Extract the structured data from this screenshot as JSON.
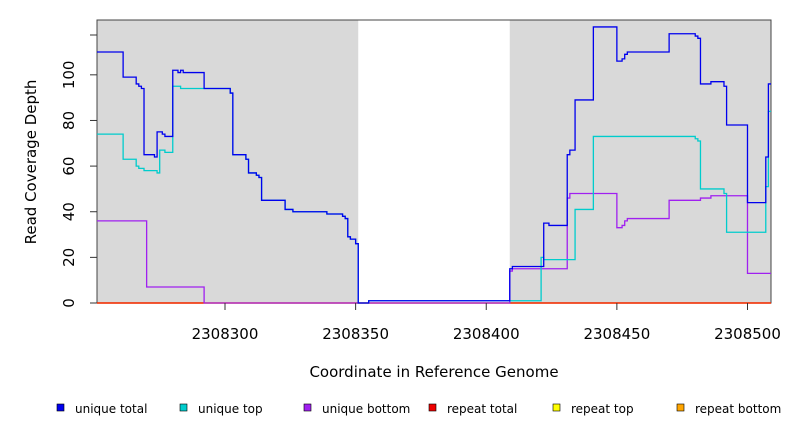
{
  "chart_data": {
    "type": "line",
    "xlabel": "Coordinate in Reference Genome",
    "ylabel": "Read Coverage Depth",
    "xlim": [
      2308251,
      2308509
    ],
    "ylim": [
      0,
      120
    ],
    "x_ticks": [
      2308300,
      2308350,
      2308400,
      2308450,
      2308500
    ],
    "y_ticks": [
      0,
      20,
      40,
      60,
      80,
      100
    ],
    "shaded_regions": [
      [
        2308251,
        2308351
      ],
      [
        2308409,
        2308509
      ]
    ],
    "legend_position": "bottom",
    "series": [
      {
        "name": "unique total",
        "color": "#0000ee",
        "points": [
          [
            2308251,
            110
          ],
          [
            2308261,
            110
          ],
          [
            2308261,
            99
          ],
          [
            2308266,
            99
          ],
          [
            2308266,
            96
          ],
          [
            2308267,
            96
          ],
          [
            2308267,
            95
          ],
          [
            2308268,
            95
          ],
          [
            2308268,
            94
          ],
          [
            2308269,
            94
          ],
          [
            2308269,
            65
          ],
          [
            2308273,
            65
          ],
          [
            2308273,
            64
          ],
          [
            2308274,
            64
          ],
          [
            2308274,
            75
          ],
          [
            2308276,
            75
          ],
          [
            2308276,
            74
          ],
          [
            2308277,
            74
          ],
          [
            2308277,
            73
          ],
          [
            2308280,
            73
          ],
          [
            2308280,
            102
          ],
          [
            2308282,
            102
          ],
          [
            2308282,
            101
          ],
          [
            2308283,
            101
          ],
          [
            2308283,
            102
          ],
          [
            2308284,
            102
          ],
          [
            2308284,
            101
          ],
          [
            2308292,
            101
          ],
          [
            2308292,
            94
          ],
          [
            2308302,
            94
          ],
          [
            2308302,
            92
          ],
          [
            2308303,
            92
          ],
          [
            2308303,
            65
          ],
          [
            2308308,
            65
          ],
          [
            2308308,
            63
          ],
          [
            2308309,
            63
          ],
          [
            2308309,
            57
          ],
          [
            2308312,
            57
          ],
          [
            2308312,
            56
          ],
          [
            2308313,
            56
          ],
          [
            2308313,
            55
          ],
          [
            2308314,
            55
          ],
          [
            2308314,
            45
          ],
          [
            2308323,
            45
          ],
          [
            2308323,
            41
          ],
          [
            2308326,
            41
          ],
          [
            2308326,
            40
          ],
          [
            2308339,
            40
          ],
          [
            2308339,
            39
          ],
          [
            2308345,
            39
          ],
          [
            2308345,
            38
          ],
          [
            2308346,
            38
          ],
          [
            2308346,
            37
          ],
          [
            2308347,
            37
          ],
          [
            2308347,
            29
          ],
          [
            2308348,
            29
          ],
          [
            2308348,
            28
          ],
          [
            2308350,
            28
          ],
          [
            2308350,
            26
          ],
          [
            2308351,
            26
          ],
          [
            2308351,
            0
          ],
          [
            2308355,
            0
          ],
          [
            2308355,
            1
          ],
          [
            2308409,
            1
          ],
          [
            2308409,
            15
          ],
          [
            2308410,
            15
          ],
          [
            2308410,
            16
          ],
          [
            2308422,
            16
          ],
          [
            2308422,
            35
          ],
          [
            2308424,
            35
          ],
          [
            2308424,
            34
          ],
          [
            2308431,
            34
          ],
          [
            2308431,
            65
          ],
          [
            2308432,
            65
          ],
          [
            2308432,
            67
          ],
          [
            2308434,
            67
          ],
          [
            2308434,
            89
          ],
          [
            2308441,
            89
          ],
          [
            2308441,
            121
          ],
          [
            2308450,
            121
          ],
          [
            2308450,
            106
          ],
          [
            2308452,
            106
          ],
          [
            2308452,
            107
          ],
          [
            2308453,
            107
          ],
          [
            2308453,
            109
          ],
          [
            2308454,
            109
          ],
          [
            2308454,
            110
          ],
          [
            2308470,
            110
          ],
          [
            2308470,
            118
          ],
          [
            2308480,
            118
          ],
          [
            2308480,
            117
          ],
          [
            2308481,
            117
          ],
          [
            2308481,
            116
          ],
          [
            2308482,
            116
          ],
          [
            2308482,
            96
          ],
          [
            2308486,
            96
          ],
          [
            2308486,
            97
          ],
          [
            2308491,
            97
          ],
          [
            2308491,
            95
          ],
          [
            2308492,
            95
          ],
          [
            2308492,
            78
          ],
          [
            2308500,
            78
          ],
          [
            2308500,
            44
          ],
          [
            2308507,
            44
          ],
          [
            2308507,
            64
          ],
          [
            2308508,
            64
          ],
          [
            2308508,
            96
          ],
          [
            2308509,
            96
          ]
        ]
      },
      {
        "name": "unique top",
        "color": "#00cccc",
        "points": [
          [
            2308251,
            74
          ],
          [
            2308261,
            74
          ],
          [
            2308261,
            63
          ],
          [
            2308266,
            63
          ],
          [
            2308266,
            60
          ],
          [
            2308267,
            60
          ],
          [
            2308267,
            59
          ],
          [
            2308269,
            59
          ],
          [
            2308269,
            58
          ],
          [
            2308274,
            58
          ],
          [
            2308274,
            57
          ],
          [
            2308275,
            57
          ],
          [
            2308275,
            67
          ],
          [
            2308277,
            67
          ],
          [
            2308277,
            66
          ],
          [
            2308280,
            66
          ],
          [
            2308280,
            95
          ],
          [
            2308283,
            95
          ],
          [
            2308283,
            94
          ],
          [
            2308292,
            94
          ],
          [
            2308292,
            94
          ],
          [
            2308302,
            94
          ],
          [
            2308302,
            92
          ],
          [
            2308303,
            92
          ],
          [
            2308303,
            65
          ],
          [
            2308308,
            65
          ],
          [
            2308308,
            63
          ],
          [
            2308309,
            63
          ],
          [
            2308309,
            57
          ],
          [
            2308312,
            57
          ],
          [
            2308312,
            56
          ],
          [
            2308313,
            56
          ],
          [
            2308313,
            55
          ],
          [
            2308314,
            55
          ],
          [
            2308314,
            45
          ],
          [
            2308323,
            45
          ],
          [
            2308323,
            41
          ],
          [
            2308326,
            41
          ],
          [
            2308326,
            40
          ],
          [
            2308339,
            40
          ],
          [
            2308339,
            39
          ],
          [
            2308345,
            39
          ],
          [
            2308345,
            38
          ],
          [
            2308346,
            38
          ],
          [
            2308346,
            37
          ],
          [
            2308347,
            37
          ],
          [
            2308347,
            29
          ],
          [
            2308348,
            29
          ],
          [
            2308348,
            28
          ],
          [
            2308350,
            28
          ],
          [
            2308350,
            26
          ],
          [
            2308351,
            26
          ],
          [
            2308351,
            0
          ],
          [
            2308355,
            0
          ],
          [
            2308355,
            1
          ],
          [
            2308409,
            1
          ],
          [
            2308409,
            1
          ],
          [
            2308421,
            1
          ],
          [
            2308421,
            20
          ],
          [
            2308422,
            20
          ],
          [
            2308422,
            19
          ],
          [
            2308431,
            19
          ],
          [
            2308431,
            19
          ],
          [
            2308434,
            19
          ],
          [
            2308434,
            41
          ],
          [
            2308441,
            41
          ],
          [
            2308441,
            73
          ],
          [
            2308480,
            73
          ],
          [
            2308480,
            72
          ],
          [
            2308481,
            72
          ],
          [
            2308481,
            71
          ],
          [
            2308482,
            71
          ],
          [
            2308482,
            50
          ],
          [
            2308491,
            50
          ],
          [
            2308491,
            48
          ],
          [
            2308492,
            48
          ],
          [
            2308492,
            31
          ],
          [
            2308507,
            31
          ],
          [
            2308507,
            51
          ],
          [
            2308508,
            51
          ],
          [
            2308508,
            84
          ],
          [
            2308509,
            84
          ]
        ]
      },
      {
        "name": "unique bottom",
        "color": "#a020f0",
        "points": [
          [
            2308251,
            36
          ],
          [
            2308270,
            36
          ],
          [
            2308270,
            7
          ],
          [
            2308292,
            7
          ],
          [
            2308292,
            0
          ],
          [
            2308409,
            0
          ],
          [
            2308409,
            14
          ],
          [
            2308410,
            14
          ],
          [
            2308410,
            15
          ],
          [
            2308431,
            15
          ],
          [
            2308431,
            46
          ],
          [
            2308432,
            46
          ],
          [
            2308432,
            48
          ],
          [
            2308450,
            48
          ],
          [
            2308450,
            33
          ],
          [
            2308452,
            33
          ],
          [
            2308452,
            34
          ],
          [
            2308453,
            34
          ],
          [
            2308453,
            36
          ],
          [
            2308454,
            36
          ],
          [
            2308454,
            37
          ],
          [
            2308470,
            37
          ],
          [
            2308470,
            45
          ],
          [
            2308482,
            45
          ],
          [
            2308482,
            46
          ],
          [
            2308486,
            46
          ],
          [
            2308486,
            47
          ],
          [
            2308500,
            47
          ],
          [
            2308500,
            13
          ],
          [
            2308509,
            13
          ]
        ]
      },
      {
        "name": "repeat total",
        "color": "#ee0000",
        "points": [
          [
            2308251,
            0
          ],
          [
            2308509,
            0
          ]
        ]
      },
      {
        "name": "repeat top",
        "color": "#ffff00",
        "points": [
          [
            2308251,
            0
          ],
          [
            2308509,
            0
          ]
        ]
      },
      {
        "name": "repeat bottom",
        "color": "#ffa500",
        "points": [
          [
            2308251,
            0
          ],
          [
            2308509,
            0
          ]
        ]
      }
    ]
  }
}
